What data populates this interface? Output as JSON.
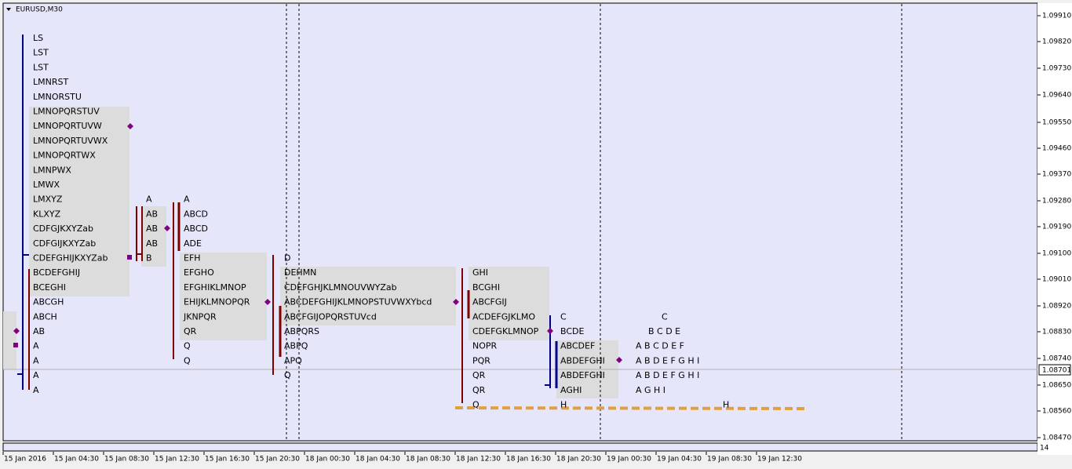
{
  "header": {
    "symbol": "EURUSD,M30"
  },
  "price_axis": {
    "labels": [
      "1.09910",
      "1.09820",
      "1.09730",
      "1.09640",
      "1.09550",
      "1.09460",
      "1.09370",
      "1.09280",
      "1.09190",
      "1.09100",
      "1.09010",
      "1.08920",
      "1.08830",
      "1.08740",
      "1.08650",
      "1.08560",
      "1.08470"
    ],
    "current": "1.08701"
  },
  "time_axis": {
    "labels": [
      "15 Jan 2016",
      "15 Jan 04:30",
      "15 Jan 08:30",
      "15 Jan 12:30",
      "15 Jan 16:30",
      "15 Jan 20:30",
      "18 Jan 00:30",
      "18 Jan 04:30",
      "18 Jan 08:30",
      "18 Jan 12:30",
      "18 Jan 16:30",
      "18 Jan 20:30",
      "19 Jan 00:30",
      "19 Jan 04:30",
      "19 Jan 08:30",
      "19 Jan 12:30"
    ]
  },
  "indicator_panel": {
    "scale": "14"
  },
  "profiles": [
    {
      "rows": [
        "LS",
        "LST",
        "LST",
        "LMNRST",
        "LMNORSTU",
        "LMNOPQRSTUV",
        "LMNOPQRTUVW",
        "LMNOPQRTUVWX",
        "LMNOPQRTWX",
        "LMNPWX",
        "LMWX",
        "LMXYZ",
        "KLXYZ",
        "CDFGJKXYZab",
        "CDFGIJKXYZab",
        "CDEFGHIJKXYZab",
        "BCDEFGHIJ",
        "BCEGHI",
        "ABCGH",
        "ABCH",
        "AB",
        "A",
        "A",
        "A",
        "A"
      ]
    },
    {
      "rows": [
        "A",
        "AB",
        "AB",
        "AB",
        "B"
      ]
    },
    {
      "rows": [
        "A",
        "ABCD",
        "ABCD",
        "ADE",
        "EFH",
        "EFGHO",
        "EFGHIKLMNOP",
        "EHIJKLMNOPQR",
        "JKNPQR",
        "QR",
        "Q",
        "Q"
      ]
    },
    {
      "rows": [
        "D",
        "DEHMN",
        "CDEFGHJKLMNOUVWYZab",
        "ABCDEFGHIJKLMNOPSTUVWXYbcd",
        "ABCFGIJOPQRSTUVcd",
        "ABPQRS",
        "ABPQ",
        "APQ",
        "Q"
      ]
    },
    {
      "rows": [
        "GHI",
        "BCGHI",
        "ABCFGIJ",
        "ACDEFGJKLMO",
        "CDEFGKLMNOP",
        "NOPR",
        "PQR",
        "QR",
        "QR",
        "Q"
      ]
    },
    {
      "rows": [
        "C",
        "BCDE",
        "ABCDEF",
        "ABDEFGHI",
        "ABDEFGHI",
        "AGHI",
        "H"
      ]
    },
    {
      "rows": [
        "C",
        "B C D E",
        "A B C D E F",
        "A B D E F G H I",
        "A B D E F G H I",
        "A G H I",
        "H"
      ]
    }
  ]
}
